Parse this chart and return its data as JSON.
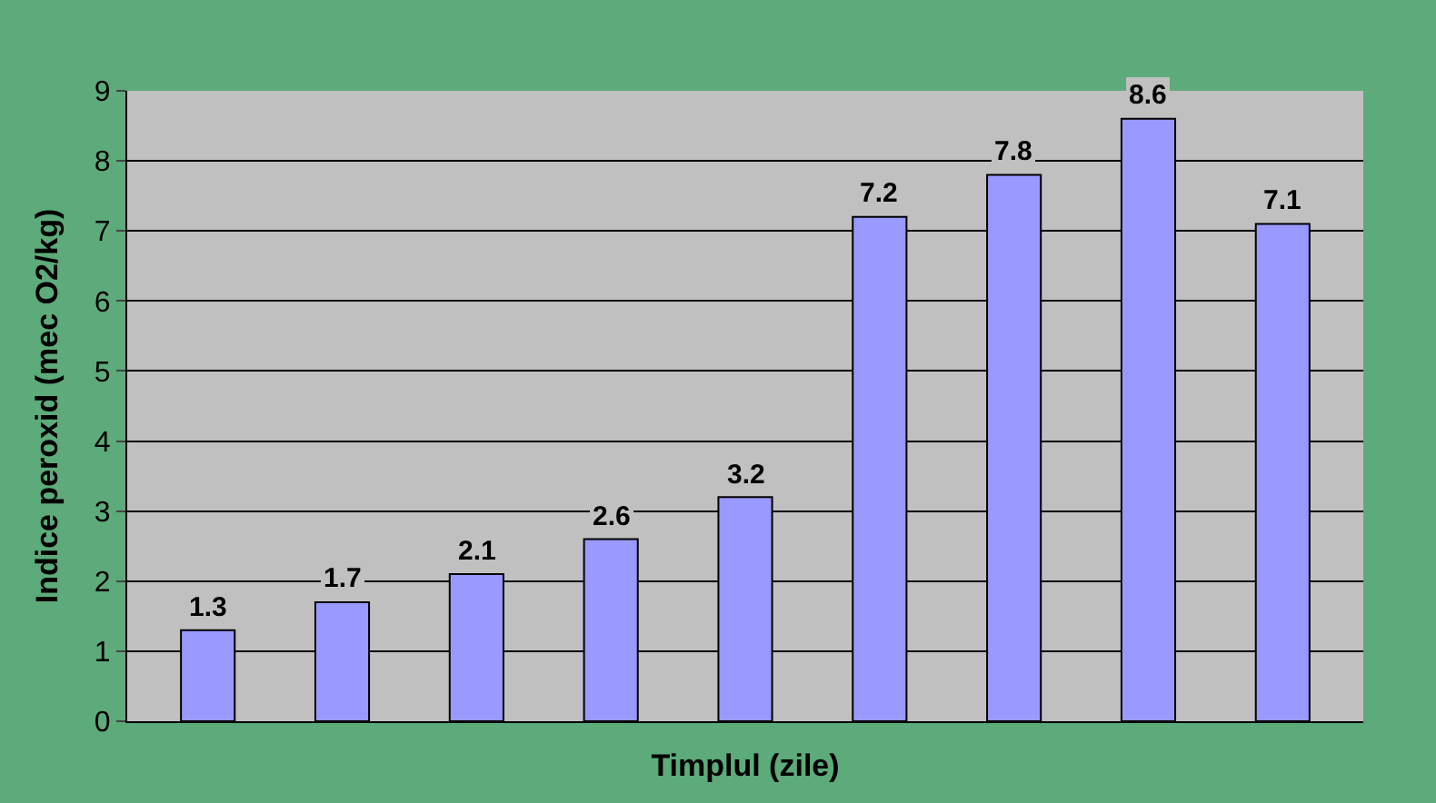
{
  "chart_data": {
    "type": "bar",
    "xlabel": "Timplul (zile)",
    "ylabel": "Indice peroxid (mec O2/kg)",
    "categories": [
      null,
      null,
      null,
      null,
      null,
      null,
      null,
      null,
      null
    ],
    "values": [
      1.3,
      1.7,
      2.1,
      2.6,
      3.2,
      7.2,
      7.8,
      8.6,
      7.1
    ],
    "color": "#9999ff",
    "ylim": [
      0,
      9
    ],
    "yticks": [
      0,
      1,
      2,
      3,
      4,
      5,
      6,
      7,
      8,
      9
    ],
    "grid": "y",
    "data_labels": true,
    "legend": false
  }
}
